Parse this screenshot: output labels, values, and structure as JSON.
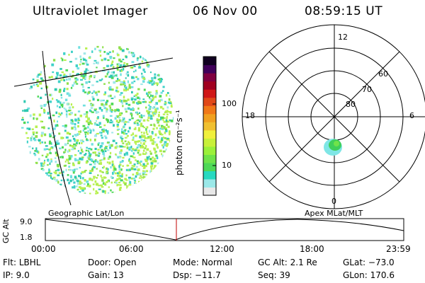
{
  "header": {
    "instrument": "Ultraviolet Imager",
    "date": "06 Nov 00",
    "time": "08:59:15 UT"
  },
  "colorbar": {
    "label": "photon cm⁻²s⁻¹",
    "ticks": [
      "100",
      "10"
    ],
    "colors": [
      "#e8e8e8",
      "#9be8e8",
      "#26d9c0",
      "#4ed856",
      "#6fe34a",
      "#9bf03a",
      "#c8f03a",
      "#f0f03c",
      "#f0c030",
      "#f0a020",
      "#f07818",
      "#e04818",
      "#d01818",
      "#a00020",
      "#800040",
      "#40005a",
      "#100020"
    ]
  },
  "polar": {
    "labels": {
      "top": "12",
      "bottom": "0",
      "left": "18",
      "right": "6"
    },
    "lat_labels": [
      "60",
      "70",
      "80"
    ]
  },
  "timeline": {
    "left_label": "Geographic Lat/Lon",
    "right_label": "Apex MLat/MLT",
    "axis_title": "GC Alt",
    "y_top": "9.0",
    "y_bottom": "1.8",
    "time_ticks": [
      "00:00",
      "06:00",
      "12:00",
      "18:00",
      "23:59"
    ]
  },
  "status": [
    {
      "label": "Flt:",
      "value": "LBHL"
    },
    {
      "label": "IP:",
      "value": "9.0"
    },
    {
      "label": "Door:",
      "value": "Open"
    },
    {
      "label": "Gain:",
      "value": "13"
    },
    {
      "label": "Mode:",
      "value": "Normal"
    },
    {
      "label": "Dsp:",
      "value": "−11.7"
    },
    {
      "label": "GC Alt:",
      "value": "2.1 Re"
    },
    {
      "label": "Seq:",
      "value": "39"
    },
    {
      "label": "GLat:",
      "value": "−73.0"
    },
    {
      "label": "GLon:",
      "value": "170.6"
    }
  ]
}
